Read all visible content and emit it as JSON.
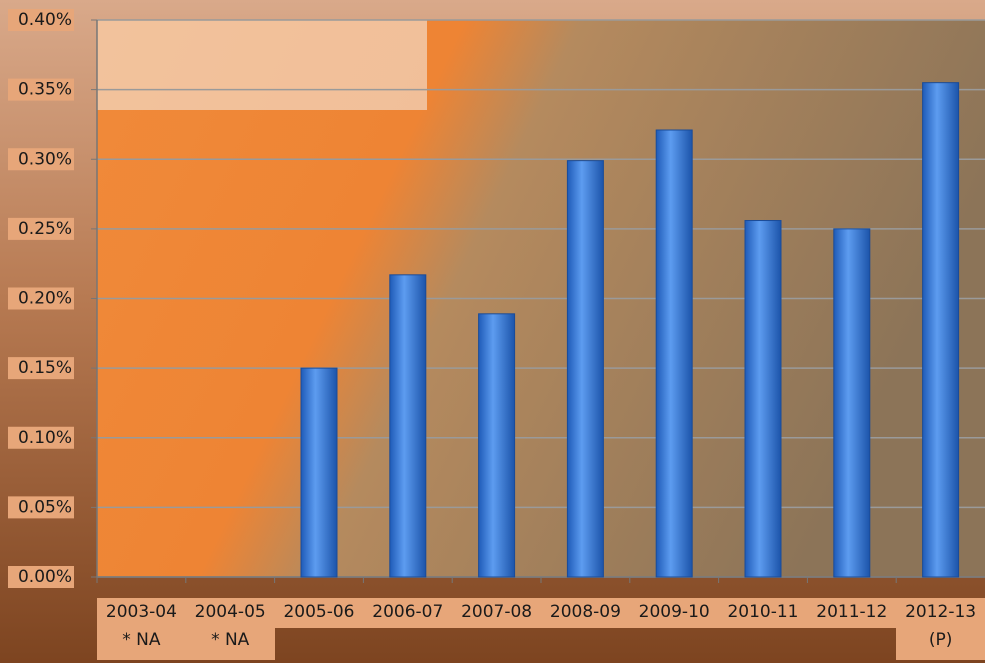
{
  "chart_data": {
    "type": "bar",
    "categories": [
      "2003-04\n* NA",
      "2004-05\n* NA",
      "2005-06",
      "2006-07",
      "2007-08",
      "2008-09",
      "2009-10",
      "2010-11",
      "2011-12",
      "2012-13\n(P)"
    ],
    "values": [
      null,
      null,
      0.15,
      0.217,
      0.189,
      0.299,
      0.321,
      0.256,
      0.25,
      0.355
    ],
    "color": "#3a7bd5",
    "ylim": [
      0,
      0.4
    ],
    "yticks": [
      {
        "value": 0,
        "label": "0.00%"
      },
      {
        "value": 0.05,
        "label": "0.05%"
      },
      {
        "value": 0.1,
        "label": "0.10%"
      },
      {
        "value": 0.15,
        "label": "0.15%"
      },
      {
        "value": 0.2,
        "label": "0.20%"
      },
      {
        "value": 0.25,
        "label": "0.25%"
      },
      {
        "value": 0.3,
        "label": "0.30%"
      },
      {
        "value": 0.35,
        "label": "0.35%"
      },
      {
        "value": 0.4,
        "label": "0.40%"
      }
    ],
    "grid": true
  }
}
